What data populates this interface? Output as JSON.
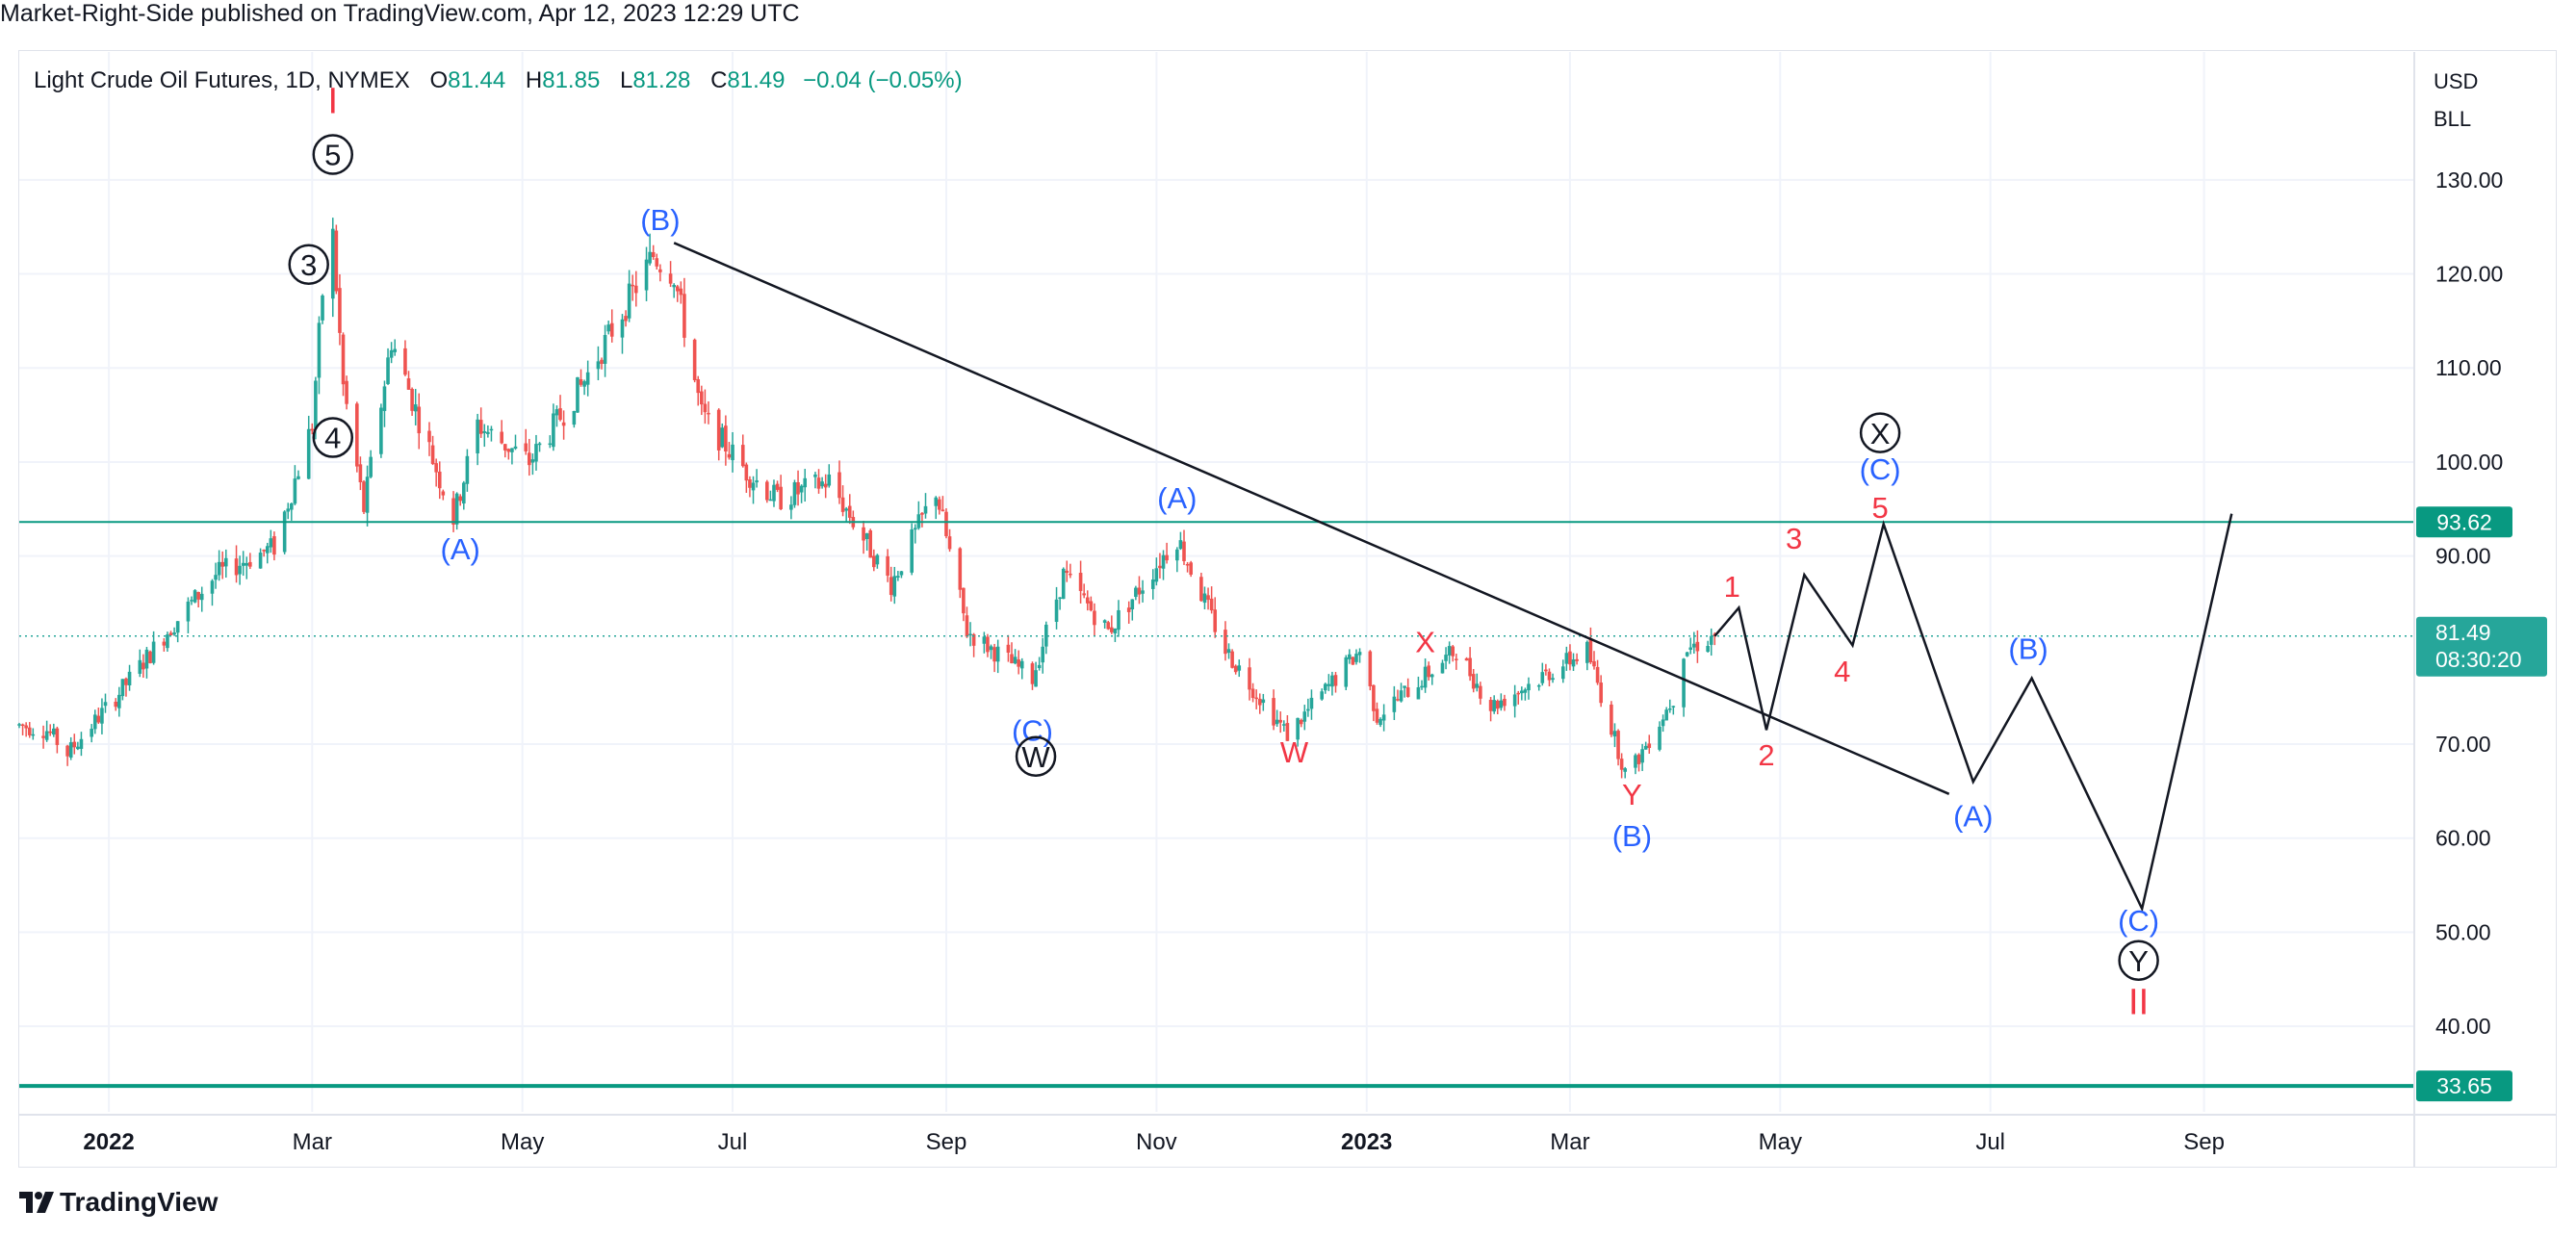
{
  "header": {
    "publisher_line": "Market-Right-Side published on TradingView.com, Apr 12, 2023 12:29 UTC"
  },
  "legend": {
    "symbol": "Light Crude Oil Futures, 1D, NYMEX",
    "open_label": "O",
    "open": "81.44",
    "high_label": "H",
    "high": "81.85",
    "low_label": "L",
    "low": "81.28",
    "close_label": "C",
    "close": "81.49",
    "change": "−0.04 (−0.05%)"
  },
  "price_axis": {
    "currency": "USD",
    "unit": "BLL",
    "last_price": "81.49",
    "countdown": "08:30:20"
  },
  "footer": {
    "brand": "TradingView",
    "logo_icon": "tradingview-logo-icon"
  },
  "colors": {
    "up": "#26a69a",
    "down": "#ef5350",
    "level_line": "#089981",
    "wave_red": "#f23645",
    "wave_blue": "#2962ff",
    "wave_black": "#131722"
  },
  "chart_data": {
    "type": "candlestick",
    "x_axis": {
      "ticks": [
        {
          "date": "2022-01-01",
          "label": "2022",
          "bold": true
        },
        {
          "date": "2022-03-01",
          "label": "Mar"
        },
        {
          "date": "2022-05-01",
          "label": "May"
        },
        {
          "date": "2022-07-01",
          "label": "Jul"
        },
        {
          "date": "2022-09-01",
          "label": "Sep"
        },
        {
          "date": "2022-11-01",
          "label": "Nov"
        },
        {
          "date": "2023-01-01",
          "label": "2023",
          "bold": true
        },
        {
          "date": "2023-03-01",
          "label": "Mar"
        },
        {
          "date": "2023-05-01",
          "label": "May"
        },
        {
          "date": "2023-07-01",
          "label": "Jul"
        },
        {
          "date": "2023-09-01",
          "label": "Sep"
        }
      ],
      "range": [
        "2021-12-06",
        "2023-11-01"
      ]
    },
    "y_axis": {
      "ticks": [
        40,
        50,
        60,
        70,
        90,
        100,
        110,
        120,
        130
      ],
      "range": [
        30.9,
        143.6
      ],
      "grid": true
    },
    "price_path": [
      {
        "date": "2021-12-06",
        "price": 72
      },
      {
        "date": "2021-12-14",
        "price": 71.5
      },
      {
        "date": "2021-12-20",
        "price": 69
      },
      {
        "date": "2022-01-03",
        "price": 75
      },
      {
        "date": "2022-01-18",
        "price": 82
      },
      {
        "date": "2022-02-01",
        "price": 88
      },
      {
        "date": "2022-02-18",
        "price": 91
      },
      {
        "date": "2022-03-01",
        "price": 104
      },
      {
        "date": "2022-03-04",
        "price": 118
      },
      {
        "date": "2022-03-07",
        "price": 124
      },
      {
        "date": "2022-03-10",
        "price": 108
      },
      {
        "date": "2022-03-16",
        "price": 95
      },
      {
        "date": "2022-03-24",
        "price": 113
      },
      {
        "date": "2022-04-11",
        "price": 94
      },
      {
        "date": "2022-04-18",
        "price": 104
      },
      {
        "date": "2022-05-03",
        "price": 100
      },
      {
        "date": "2022-05-18",
        "price": 108
      },
      {
        "date": "2022-06-08",
        "price": 122
      },
      {
        "date": "2022-06-14",
        "price": 120
      },
      {
        "date": "2022-06-22",
        "price": 105
      },
      {
        "date": "2022-07-05",
        "price": 99
      },
      {
        "date": "2022-07-14",
        "price": 96
      },
      {
        "date": "2022-07-29",
        "price": 98
      },
      {
        "date": "2022-08-16",
        "price": 87
      },
      {
        "date": "2022-08-29",
        "price": 97
      },
      {
        "date": "2022-09-07",
        "price": 82
      },
      {
        "date": "2022-09-26",
        "price": 77
      },
      {
        "date": "2022-10-05",
        "price": 88
      },
      {
        "date": "2022-10-18",
        "price": 82
      },
      {
        "date": "2022-11-07",
        "price": 92
      },
      {
        "date": "2022-11-21",
        "price": 80
      },
      {
        "date": "2022-12-09",
        "price": 71
      },
      {
        "date": "2022-12-30",
        "price": 80
      },
      {
        "date": "2023-01-04",
        "price": 73
      },
      {
        "date": "2023-01-27",
        "price": 80
      },
      {
        "date": "2023-02-06",
        "price": 74
      },
      {
        "date": "2023-03-06",
        "price": 80
      },
      {
        "date": "2023-03-17",
        "price": 67
      },
      {
        "date": "2023-03-20",
        "price": 68
      },
      {
        "date": "2023-03-31",
        "price": 75
      },
      {
        "date": "2023-04-03",
        "price": 80
      },
      {
        "date": "2023-04-12",
        "price": 81.49
      }
    ],
    "trendline": [
      {
        "date": "2022-06-14",
        "price": 123.3
      },
      {
        "date": "2023-06-19",
        "price": 64.7
      }
    ],
    "projection": [
      {
        "date": "2023-04-12",
        "price": 81.49
      },
      {
        "date": "2023-04-19",
        "price": 84.5
      },
      {
        "date": "2023-04-27",
        "price": 71.5
      },
      {
        "date": "2023-05-08",
        "price": 88
      },
      {
        "date": "2023-05-22",
        "price": 80.5
      },
      {
        "date": "2023-05-31",
        "price": 93.4
      },
      {
        "date": "2023-06-26",
        "price": 66
      },
      {
        "date": "2023-07-13",
        "price": 77
      },
      {
        "date": "2023-08-14",
        "price": 52.5
      },
      {
        "date": "2023-09-09",
        "price": 94.5
      }
    ],
    "levels": [
      {
        "price": 93.62,
        "label": "93.62"
      },
      {
        "price": 33.65,
        "label": "33.65"
      }
    ],
    "last_price_line": 81.49,
    "annotations": [
      {
        "text": "I",
        "date": "2022-03-07",
        "price": 138.5,
        "color": "red",
        "size": "big"
      },
      {
        "text": "5",
        "date": "2022-03-07",
        "price": 132.7,
        "color": "black",
        "circled": true
      },
      {
        "text": "3",
        "date": "2022-02-28",
        "price": 121.0,
        "color": "black",
        "circled": true
      },
      {
        "text": "4",
        "date": "2022-03-07",
        "price": 102.6,
        "color": "black",
        "circled": true
      },
      {
        "text": "(A)",
        "date": "2022-04-13",
        "price": 90.8,
        "color": "blue"
      },
      {
        "text": "(B)",
        "date": "2022-06-10",
        "price": 125.8,
        "color": "blue"
      },
      {
        "text": "(C)",
        "date": "2022-09-26",
        "price": 71.5,
        "color": "blue"
      },
      {
        "text": "W",
        "date": "2022-09-27",
        "price": 68.7,
        "color": "black",
        "circled": true
      },
      {
        "text": "(A)",
        "date": "2022-11-07",
        "price": 96.2,
        "color": "blue"
      },
      {
        "text": "W",
        "date": "2022-12-11",
        "price": 69.2,
        "color": "red"
      },
      {
        "text": "X",
        "date": "2023-01-18",
        "price": 80.9,
        "color": "red"
      },
      {
        "text": "Y",
        "date": "2023-03-19",
        "price": 64.7,
        "color": "red"
      },
      {
        "text": "(B)",
        "date": "2023-03-19",
        "price": 60.3,
        "color": "blue"
      },
      {
        "text": "1",
        "date": "2023-04-17",
        "price": 86.8,
        "color": "red"
      },
      {
        "text": "2",
        "date": "2023-04-27",
        "price": 68.9,
        "color": "red"
      },
      {
        "text": "3",
        "date": "2023-05-05",
        "price": 91.9,
        "color": "red"
      },
      {
        "text": "4",
        "date": "2023-05-19",
        "price": 77.8,
        "color": "red"
      },
      {
        "text": "5",
        "date": "2023-05-30",
        "price": 95.2,
        "color": "red"
      },
      {
        "text": "(C)",
        "date": "2023-05-30",
        "price": 99.3,
        "color": "blue"
      },
      {
        "text": "X",
        "date": "2023-05-30",
        "price": 103.1,
        "color": "black",
        "circled": true
      },
      {
        "text": "(A)",
        "date": "2023-06-26",
        "price": 62.4,
        "color": "blue"
      },
      {
        "text": "(B)",
        "date": "2023-07-12",
        "price": 80.2,
        "color": "blue"
      },
      {
        "text": "(C)",
        "date": "2023-08-13",
        "price": 51.3,
        "color": "blue"
      },
      {
        "text": "Y",
        "date": "2023-08-13",
        "price": 47.0,
        "color": "black",
        "circled": true
      },
      {
        "text": "II",
        "date": "2023-08-13",
        "price": 42.7,
        "color": "red",
        "size": "big"
      }
    ]
  }
}
